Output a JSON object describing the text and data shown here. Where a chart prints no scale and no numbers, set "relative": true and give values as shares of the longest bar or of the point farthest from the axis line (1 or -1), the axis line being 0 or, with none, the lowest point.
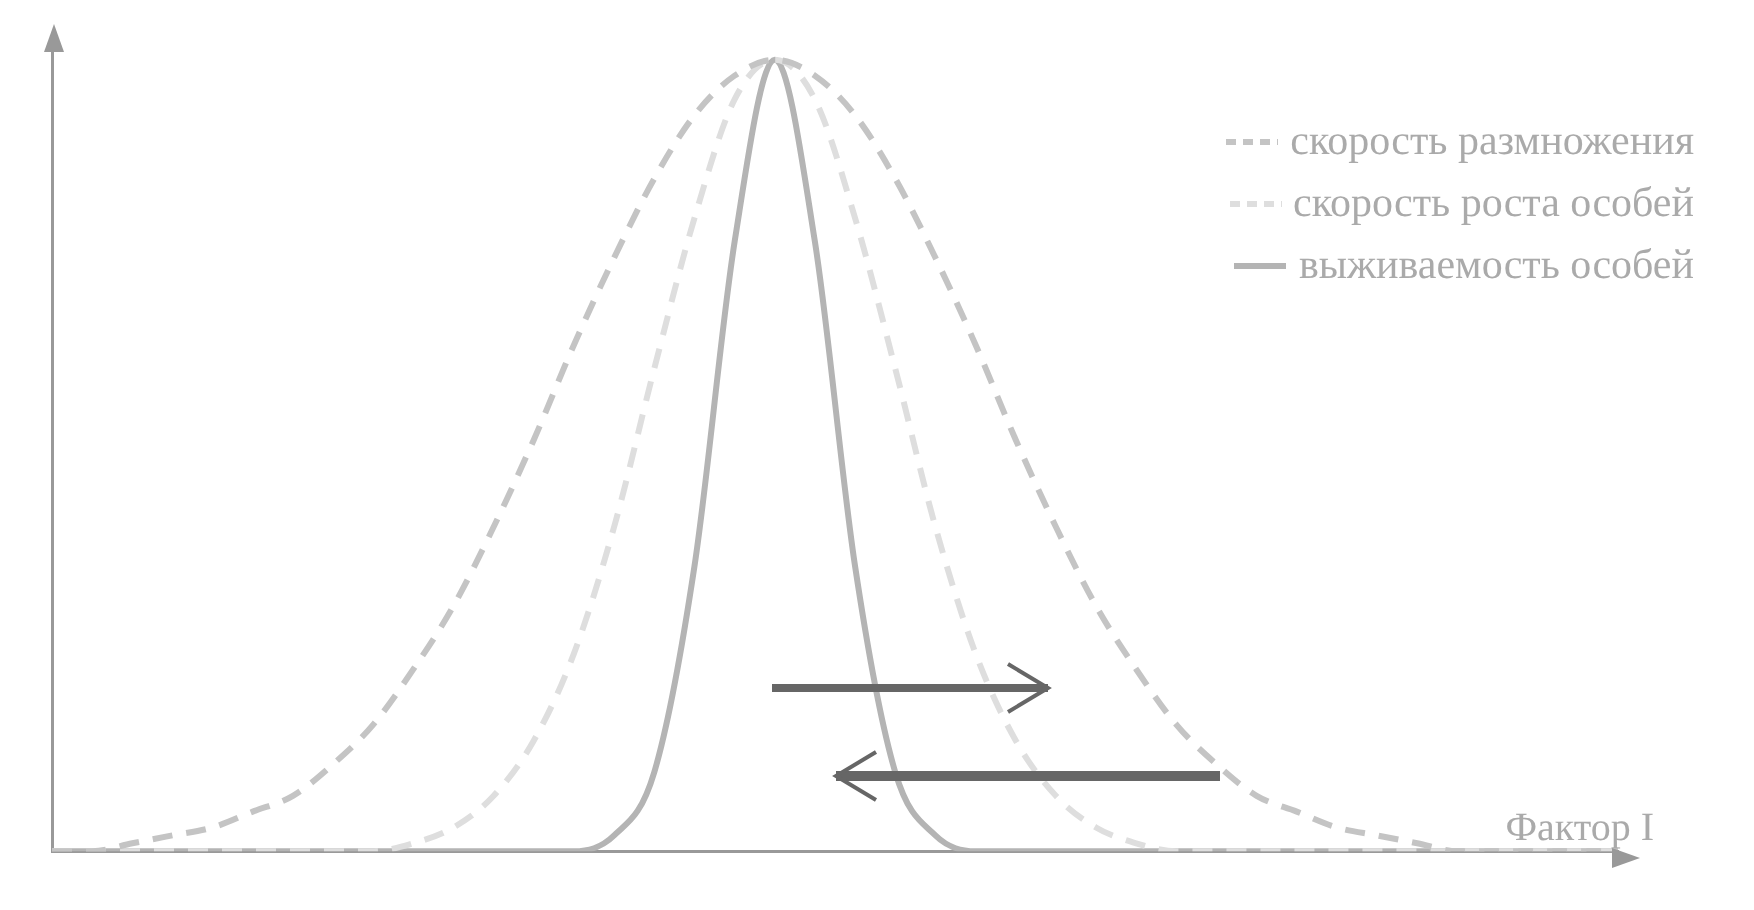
{
  "chart_data": {
    "type": "line",
    "relative": true,
    "xlabel": "Фактор I",
    "categories": [
      null,
      null,
      null,
      null,
      null,
      null,
      null,
      null,
      null,
      null,
      null,
      null,
      null,
      null,
      null,
      null,
      null,
      null,
      null,
      null,
      null,
      null,
      null,
      null,
      null,
      null,
      null,
      null,
      null,
      null,
      null,
      null,
      null,
      null,
      null,
      null,
      null,
      null,
      null,
      null
    ],
    "series": [
      {
        "name": "скорость размножения",
        "color": "#c4c4c4",
        "line_style": "dashed",
        "values": [
          0,
          0,
          0.01,
          0.02,
          0.03,
          0.05,
          0.07,
          0.11,
          0.16,
          0.23,
          0.31,
          0.41,
          0.52,
          0.64,
          0.75,
          0.85,
          0.93,
          0.98,
          1,
          0.98,
          0.93,
          0.85,
          0.75,
          0.64,
          0.52,
          0.41,
          0.31,
          0.23,
          0.16,
          0.11,
          0.07,
          0.05,
          0.03,
          0.02,
          0.01,
          0,
          0,
          0,
          0,
          0
        ]
      },
      {
        "name": "скорость роста особей",
        "color": "#dedede",
        "line_style": "dashed",
        "values": [
          0,
          0,
          0,
          0,
          0,
          0,
          0,
          0,
          0,
          0.01,
          0.03,
          0.07,
          0.14,
          0.25,
          0.41,
          0.61,
          0.8,
          0.95,
          1,
          0.95,
          0.8,
          0.61,
          0.41,
          0.25,
          0.14,
          0.07,
          0.03,
          0.01,
          0,
          0,
          0,
          0,
          0,
          0,
          0,
          0,
          0,
          0,
          0,
          0
        ]
      },
      {
        "name": "выживаемость особей",
        "color": "#b4b4b4",
        "line_style": "solid",
        "values": [
          0,
          0,
          0,
          0,
          0,
          0,
          0,
          0,
          0,
          0,
          0,
          0,
          0,
          0,
          0.02,
          0.1,
          0.36,
          0.77,
          1,
          0.77,
          0.36,
          0.1,
          0.02,
          0,
          0,
          0,
          0,
          0,
          0,
          0,
          0,
          0,
          0,
          0,
          0,
          0,
          0,
          0,
          0,
          0
        ]
      }
    ],
    "marker": "none",
    "grid": false,
    "legend": "top right"
  }
}
